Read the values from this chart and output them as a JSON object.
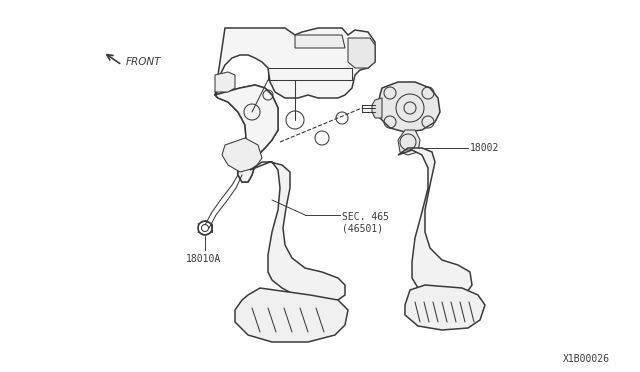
{
  "bg_color": "#ffffff",
  "lc": "#3a3a3a",
  "lc_light": "#666666",
  "label_18002": "18002",
  "label_18010A": "18010A",
  "label_sec": "SEC. 465\n(46501)",
  "label_front": "FRONT",
  "label_code": "X1B00026",
  "lw_main": 1.1,
  "lw_detail": 0.75,
  "lw_leader": 0.7,
  "fig_w": 6.4,
  "fig_h": 3.72,
  "dpi": 100
}
